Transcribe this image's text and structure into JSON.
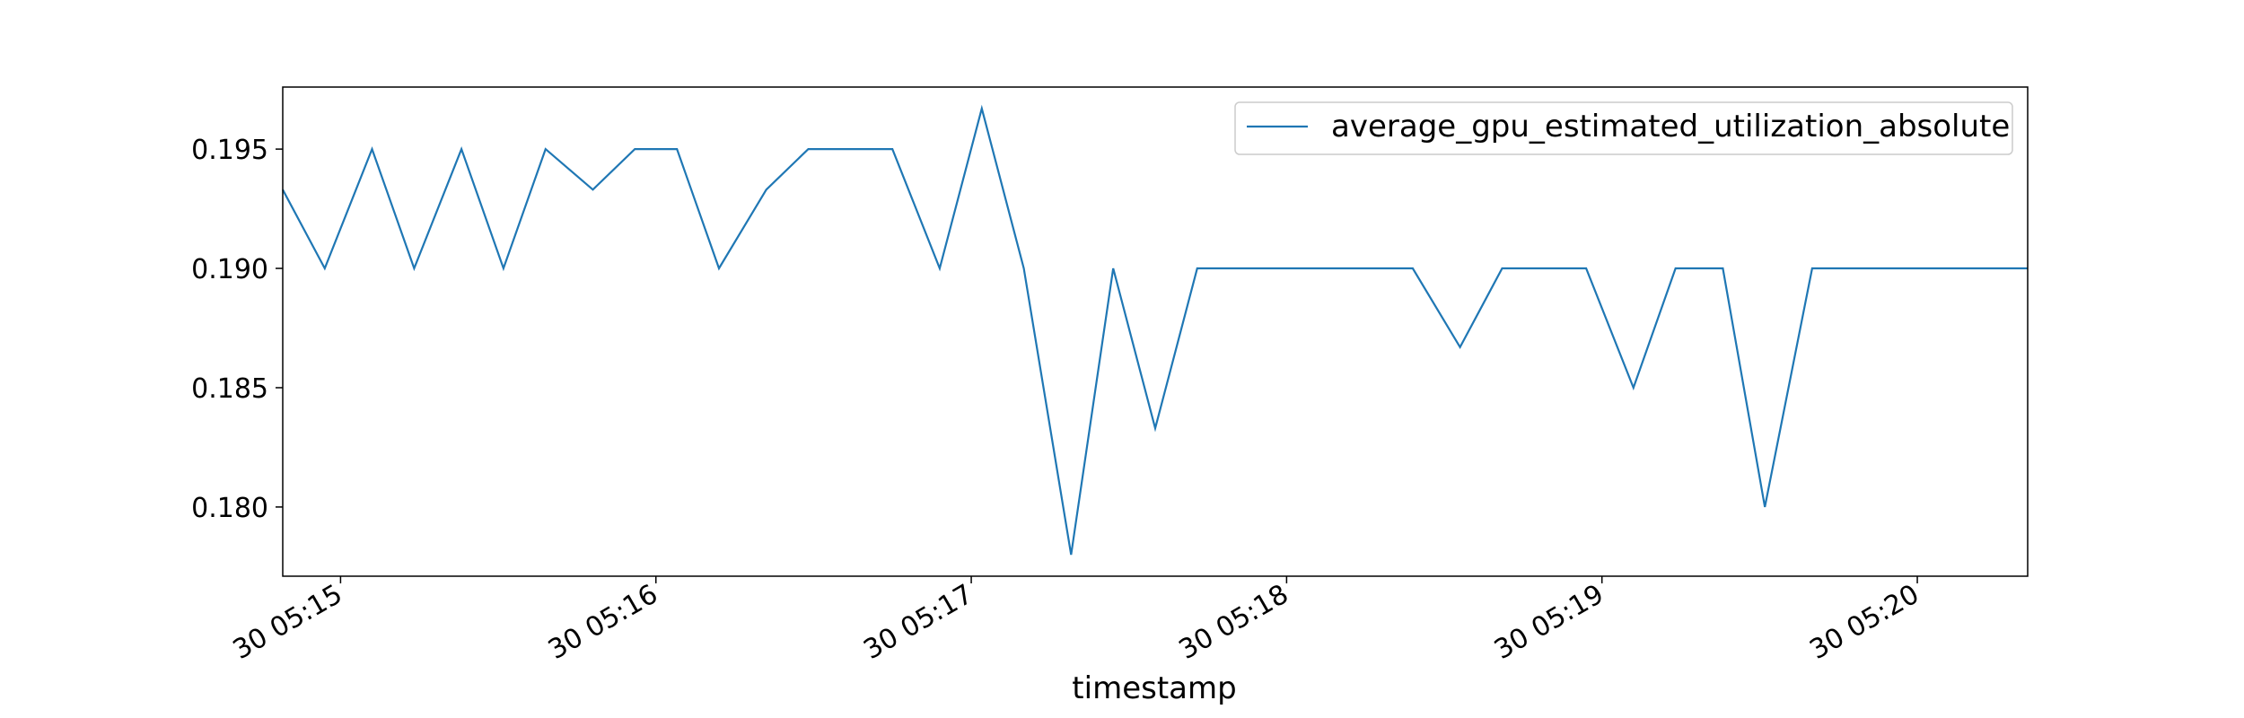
{
  "chart_data": {
    "type": "line",
    "xlabel": "timestamp",
    "ylabel": "",
    "title": "",
    "x_ticks": [
      "30 05:15",
      "30 05:16",
      "30 05:17",
      "30 05:18",
      "30 05:19",
      "30 05:20"
    ],
    "y_ticks": [
      "0.180",
      "0.185",
      "0.190",
      "0.195"
    ],
    "ylim": [
      0.1771,
      0.1976
    ],
    "xlim": [
      "30 05:14:49",
      "30 05:20:21"
    ],
    "grid": false,
    "legend_position": "top-right",
    "series": [
      {
        "name": "average_gpu_estimated_utilization_absolute",
        "color": "#1f77b4",
        "x": [
          "05:14:49",
          "05:14:57",
          "05:15:06",
          "05:15:14",
          "05:15:23",
          "05:15:31",
          "05:15:39",
          "05:15:48",
          "05:15:56",
          "05:16:04",
          "05:16:12",
          "05:16:21",
          "05:16:29",
          "05:16:37",
          "05:16:45",
          "05:16:54",
          "05:17:02",
          "05:17:10",
          "05:17:19",
          "05:17:27",
          "05:17:35",
          "05:17:43",
          "05:18:24",
          "05:18:33",
          "05:18:41",
          "05:18:57",
          "05:19:06",
          "05:19:14",
          "05:19:23",
          "05:19:31",
          "05:19:40",
          "05:20:21"
        ],
        "values": [
          0.1933,
          0.19,
          0.195,
          0.19,
          0.195,
          0.19,
          0.195,
          0.1933,
          0.195,
          0.195,
          0.19,
          0.1933,
          0.195,
          0.195,
          0.195,
          0.19,
          0.1967,
          0.19,
          0.178,
          0.19,
          0.1833,
          0.19,
          0.19,
          0.1867,
          0.19,
          0.19,
          0.185,
          0.19,
          0.19,
          0.18,
          0.19,
          0.19
        ]
      }
    ]
  }
}
